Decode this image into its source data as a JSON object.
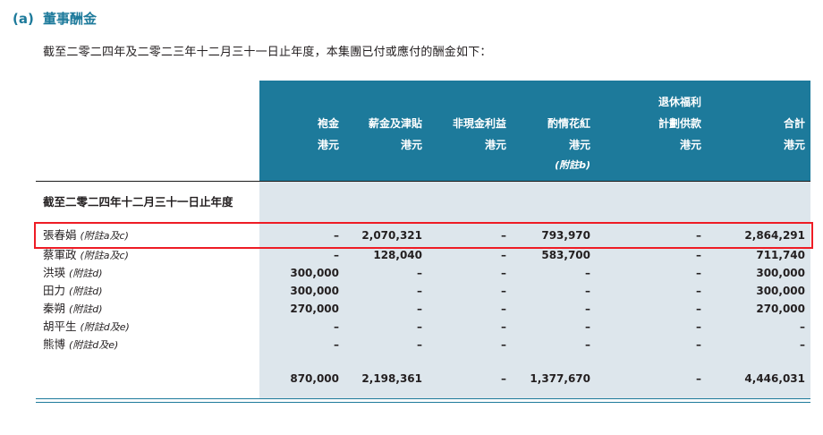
{
  "colors": {
    "teal": "#1d7a9b",
    "body_bg": "#dde6ec",
    "highlight_red": "#ee1c25"
  },
  "heading": {
    "marker": "(a)",
    "title": "董事酬金"
  },
  "intro": "截至二零二四年及二零二三年十二月三十一日止年度，本集團已付或應付的酬金如下：",
  "table": {
    "header": {
      "cols": [
        {
          "top": "",
          "name": "袍金",
          "unit": "港元",
          "note": ""
        },
        {
          "top": "",
          "name": "薪金及津貼",
          "unit": "港元",
          "note": ""
        },
        {
          "top": "",
          "name": "非現金利益",
          "unit": "港元",
          "note": ""
        },
        {
          "top": "",
          "name": "酌情花紅",
          "unit": "港元",
          "note": "(附註b)"
        },
        {
          "top": "退休福利",
          "name": "計劃供款",
          "unit": "港元",
          "note": ""
        },
        {
          "top": "",
          "name": "合計",
          "unit": "港元",
          "note": ""
        }
      ]
    },
    "section_label": "截至二零二四年十二月三十一日止年度",
    "rows": [
      {
        "name": "張春娟",
        "note": "(附註a及c)",
        "values": [
          "–",
          "2,070,321",
          "–",
          "793,970",
          "–",
          "2,864,291"
        ],
        "highlighted": true
      },
      {
        "name": "蔡軍政",
        "note": "(附註a及c)",
        "values": [
          "–",
          "128,040",
          "–",
          "583,700",
          "–",
          "711,740"
        ],
        "highlighted": false
      },
      {
        "name": "洪瑛",
        "note": "(附註d)",
        "values": [
          "300,000",
          "–",
          "–",
          "–",
          "–",
          "300,000"
        ],
        "highlighted": false
      },
      {
        "name": "田力",
        "note": "(附註d)",
        "values": [
          "300,000",
          "–",
          "–",
          "–",
          "–",
          "300,000"
        ],
        "highlighted": false
      },
      {
        "name": "秦朔",
        "note": "(附註d)",
        "values": [
          "270,000",
          "–",
          "–",
          "–",
          "–",
          "270,000"
        ],
        "highlighted": false
      },
      {
        "name": "胡平生",
        "note": "(附註d及e)",
        "values": [
          "–",
          "–",
          "–",
          "–",
          "–",
          "–"
        ],
        "highlighted": false
      },
      {
        "name": "熊博",
        "note": "(附註d及e)",
        "values": [
          "–",
          "–",
          "–",
          "–",
          "–",
          "–"
        ],
        "highlighted": false
      }
    ],
    "total": [
      "870,000",
      "2,198,361",
      "–",
      "1,377,670",
      "–",
      "4,446,031"
    ]
  }
}
